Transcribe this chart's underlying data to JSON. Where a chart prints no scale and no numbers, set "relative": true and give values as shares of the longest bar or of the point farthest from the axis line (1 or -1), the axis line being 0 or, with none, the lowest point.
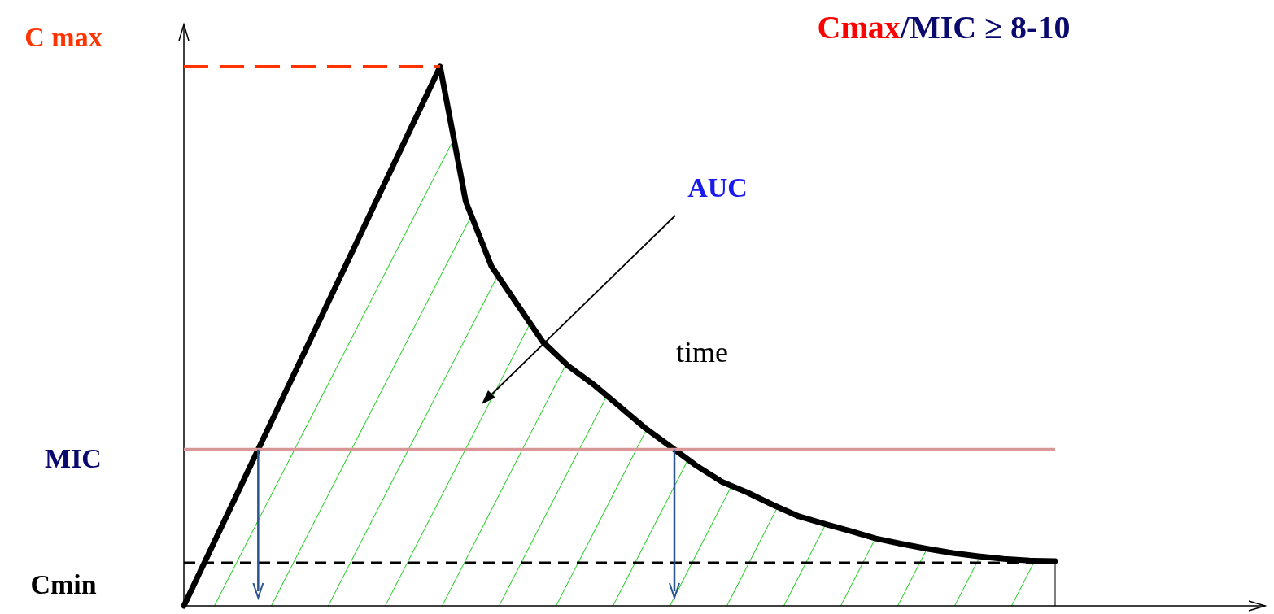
{
  "chart_data": {
    "type": "area",
    "title": "Cmax/MIC ≥ 8-10",
    "relative": true,
    "categories": [
      null,
      null,
      null,
      null,
      null,
      null,
      null,
      null,
      null,
      null,
      null,
      null,
      null,
      null,
      null,
      null,
      null,
      null,
      null,
      null,
      null,
      null,
      null,
      null,
      null,
      null,
      null,
      null,
      null,
      null,
      null,
      null,
      null,
      null,
      null
    ],
    "series": [
      {
        "color": "#000000",
        "values": [
          0,
          0.1,
          0.2,
          0.3,
          0.4,
          0.5,
          0.6,
          0.7,
          0.8,
          0.9,
          1,
          0.75,
          0.63,
          0.56,
          0.49,
          0.445,
          0.41,
          0.37,
          0.33,
          0.295,
          0.26,
          0.23,
          0.21,
          0.187,
          0.166,
          0.152,
          0.139,
          0.125,
          0.115,
          0.106,
          0.098,
          0.092,
          0.087,
          0.084,
          0.083
        ]
      }
    ],
    "ref_lines": [
      {
        "axis": "y",
        "value": 1,
        "label": "C max",
        "color": "#ff3300",
        "line_style": "dashed"
      },
      {
        "axis": "y",
        "value": 0.29,
        "label": "MIC",
        "color": "#d99696",
        "line_style": "solid"
      },
      {
        "axis": "y",
        "value": 0.08,
        "label": "Cmin",
        "color": "#000000",
        "line_style": "dashed"
      }
    ],
    "annotations": [
      "AUC",
      "time"
    ]
  }
}
